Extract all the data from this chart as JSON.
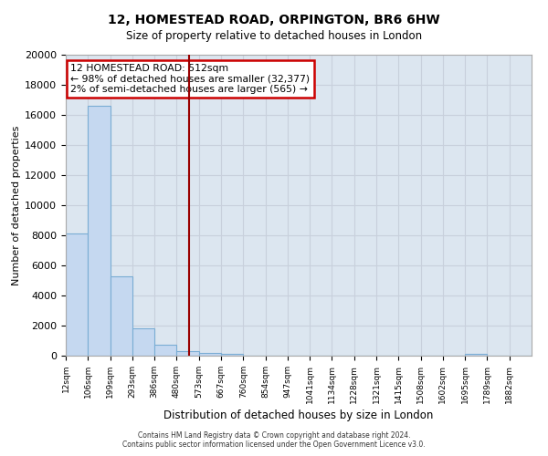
{
  "title": "12, HOMESTEAD ROAD, ORPINGTON, BR6 6HW",
  "subtitle": "Size of property relative to detached houses in London",
  "xlabel": "Distribution of detached houses by size in London",
  "ylabel": "Number of detached properties",
  "bar_values": [
    8100,
    16600,
    5300,
    1800,
    700,
    300,
    200,
    100,
    0,
    0,
    0,
    0,
    0,
    0,
    0,
    0,
    0,
    0,
    100,
    0,
    0
  ],
  "bar_labels": [
    "12sqm",
    "106sqm",
    "199sqm",
    "293sqm",
    "386sqm",
    "480sqm",
    "573sqm",
    "667sqm",
    "760sqm",
    "854sqm",
    "947sqm",
    "1041sqm",
    "1134sqm",
    "1228sqm",
    "1321sqm",
    "1415sqm",
    "1508sqm",
    "1602sqm",
    "1695sqm",
    "1789sqm",
    "1882sqm"
  ],
  "bar_color": "#c5d8f0",
  "bar_edge_color": "#7aadd4",
  "vline_color": "#990000",
  "annotation_title": "12 HOMESTEAD ROAD: 512sqm",
  "annotation_line1": "← 98% of detached houses are smaller (32,377)",
  "annotation_line2": "2% of semi-detached houses are larger (565) →",
  "annotation_box_color": "#ffffff",
  "annotation_box_edge": "#cc0000",
  "ylim": [
    0,
    20000
  ],
  "yticks": [
    0,
    2000,
    4000,
    6000,
    8000,
    10000,
    12000,
    14000,
    16000,
    18000,
    20000
  ],
  "grid_color": "#c8d0dc",
  "bg_color": "#dce6f0",
  "footer_line1": "Contains HM Land Registry data © Crown copyright and database right 2024.",
  "footer_line2": "Contains public sector information licensed under the Open Government Licence v3.0."
}
